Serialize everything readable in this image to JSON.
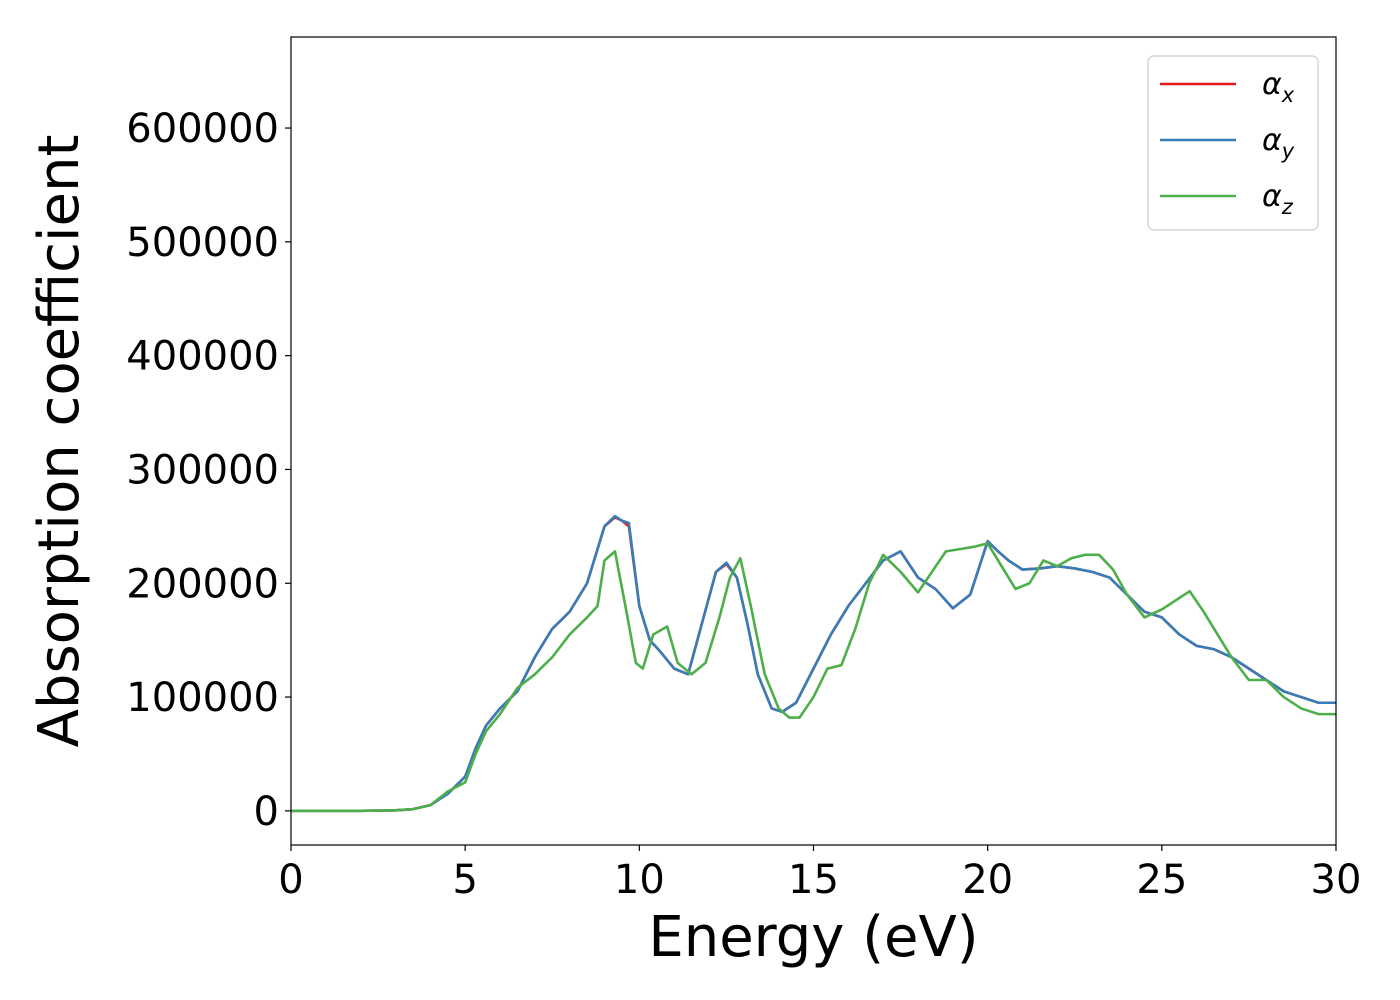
{
  "chart_data": {
    "type": "line",
    "title": "",
    "xlabel": "Energy (eV)",
    "ylabel": "Absorption coefficient",
    "xlim": [
      0,
      30
    ],
    "ylim": [
      -30000,
      680000
    ],
    "xticks": [
      0,
      5,
      10,
      15,
      20,
      25,
      30
    ],
    "xtick_labels": [
      "0",
      "5",
      "10",
      "15",
      "20",
      "25",
      "30"
    ],
    "yticks": [
      0,
      100000,
      200000,
      300000,
      400000,
      500000,
      600000
    ],
    "ytick_labels": [
      "0",
      "100000",
      "200000",
      "300000",
      "400000",
      "500000",
      "600000"
    ],
    "grid": false,
    "legend_position": "top-right",
    "series": [
      {
        "name": "α",
        "subscript": "x",
        "color": "#e41a1c",
        "x": [
          0,
          1,
          2,
          3,
          3.5,
          4,
          4.5,
          5,
          5.3,
          5.6,
          6,
          6.5,
          7,
          7.5,
          8,
          8.5,
          8.8,
          9,
          9.3,
          9.5,
          9.7,
          10,
          10.3,
          10.6,
          11,
          11.4,
          11.8,
          12.2,
          12.5,
          12.8,
          13.1,
          13.4,
          13.8,
          14.1,
          14.5,
          15,
          15.5,
          16,
          16.5,
          17,
          17.5,
          18,
          18.5,
          19,
          19.5,
          20,
          20.3,
          20.6,
          21,
          21.5,
          22,
          22.5,
          23,
          23.5,
          24,
          24.5,
          25,
          25.5,
          26,
          26.5,
          27,
          27.5,
          28,
          28.5,
          29,
          29.5,
          30
        ],
        "y": [
          0,
          0,
          0,
          500,
          1500,
          5000,
          15000,
          30000,
          55000,
          75000,
          90000,
          105000,
          135000,
          160000,
          175000,
          200000,
          230000,
          250000,
          258000,
          255000,
          250000,
          180000,
          150000,
          140000,
          125000,
          120000,
          165000,
          210000,
          217000,
          205000,
          165000,
          120000,
          90000,
          87000,
          95000,
          125000,
          155000,
          180000,
          200000,
          220000,
          228000,
          205000,
          195000,
          178000,
          190000,
          237000,
          228000,
          220000,
          212000,
          213000,
          215000,
          213000,
          210000,
          205000,
          190000,
          175000,
          170000,
          155000,
          145000,
          142000,
          135000,
          125000,
          115000,
          105000,
          100000,
          95000,
          95000
        ]
      },
      {
        "name": "α",
        "subscript": "y",
        "color": "#377eb8",
        "x": [
          0,
          1,
          2,
          3,
          3.5,
          4,
          4.5,
          5,
          5.3,
          5.6,
          6,
          6.5,
          7,
          7.5,
          8,
          8.5,
          8.8,
          9,
          9.3,
          9.5,
          9.7,
          10,
          10.3,
          10.6,
          11,
          11.4,
          11.8,
          12.2,
          12.5,
          12.8,
          13.1,
          13.4,
          13.8,
          14.1,
          14.5,
          15,
          15.5,
          16,
          16.5,
          17,
          17.5,
          18,
          18.5,
          19,
          19.5,
          20,
          20.3,
          20.6,
          21,
          21.5,
          22,
          22.5,
          23,
          23.5,
          24,
          24.5,
          25,
          25.5,
          26,
          26.5,
          27,
          27.5,
          28,
          28.5,
          29,
          29.5,
          30
        ],
        "y": [
          0,
          0,
          0,
          500,
          1500,
          5000,
          15000,
          30000,
          55000,
          75000,
          90000,
          105000,
          135000,
          160000,
          175000,
          200000,
          230000,
          250000,
          259000,
          255000,
          253000,
          180000,
          150000,
          140000,
          125000,
          120000,
          165000,
          210000,
          218000,
          205000,
          165000,
          120000,
          90000,
          87000,
          95000,
          125000,
          155000,
          180000,
          200000,
          220000,
          228000,
          205000,
          195000,
          178000,
          190000,
          237000,
          228000,
          220000,
          212000,
          213000,
          215000,
          213000,
          210000,
          205000,
          190000,
          175000,
          170000,
          155000,
          145000,
          142000,
          135000,
          125000,
          115000,
          105000,
          100000,
          95000,
          95000
        ]
      },
      {
        "name": "α",
        "subscript": "z",
        "color": "#4daf4a",
        "x": [
          0,
          1,
          2,
          3,
          3.5,
          4,
          4.5,
          5,
          5.3,
          5.6,
          6,
          6.5,
          7,
          7.5,
          8,
          8.5,
          8.8,
          9,
          9.3,
          9.6,
          9.9,
          10.1,
          10.4,
          10.8,
          11.1,
          11.5,
          11.9,
          12.3,
          12.6,
          12.9,
          13.2,
          13.6,
          14,
          14.3,
          14.6,
          15,
          15.4,
          15.8,
          16.2,
          16.6,
          17,
          17.5,
          18,
          18.4,
          18.8,
          19.2,
          19.6,
          20,
          20.4,
          20.8,
          21.2,
          21.6,
          22,
          22.4,
          22.8,
          23.2,
          23.6,
          24,
          24.5,
          25,
          25.4,
          25.8,
          26.2,
          26.6,
          27,
          27.5,
          28,
          28.5,
          29,
          29.5,
          30
        ],
        "y": [
          0,
          0,
          0,
          500,
          1500,
          5000,
          17000,
          25000,
          50000,
          70000,
          85000,
          108000,
          120000,
          135000,
          155000,
          170000,
          180000,
          220000,
          228000,
          180000,
          130000,
          125000,
          155000,
          162000,
          130000,
          120000,
          130000,
          170000,
          205000,
          222000,
          180000,
          120000,
          90000,
          82000,
          82000,
          100000,
          125000,
          128000,
          160000,
          200000,
          225000,
          210000,
          192000,
          210000,
          228000,
          230000,
          232000,
          235000,
          215000,
          195000,
          200000,
          220000,
          215000,
          222000,
          225000,
          225000,
          212000,
          190000,
          170000,
          177000,
          185000,
          193000,
          175000,
          155000,
          135000,
          115000,
          115000,
          100000,
          90000,
          85000,
          85000
        ]
      }
    ]
  }
}
